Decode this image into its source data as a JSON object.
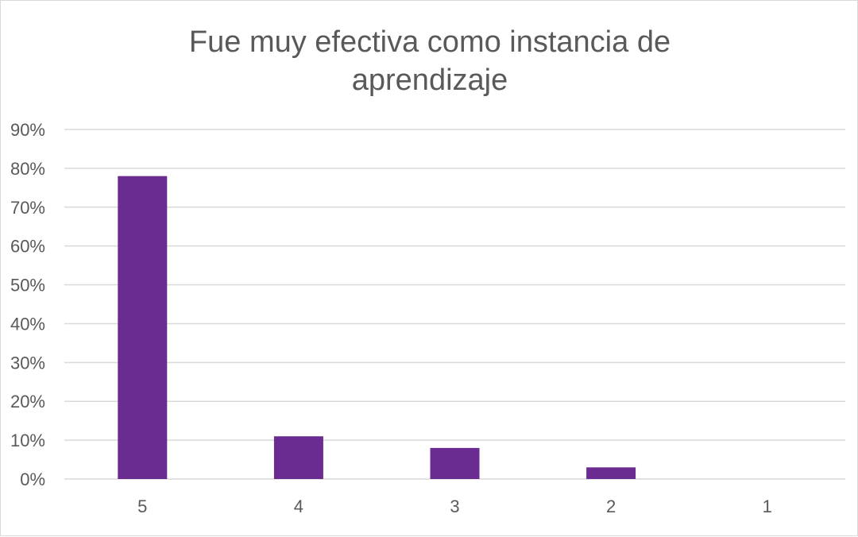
{
  "chart_data": {
    "type": "bar",
    "title": "Fue muy efectiva como instancia de aprendizaje",
    "categories": [
      "5",
      "4",
      "3",
      "2",
      "1"
    ],
    "values": [
      78,
      11,
      8,
      3,
      0
    ],
    "y_ticks": [
      "0%",
      "10%",
      "20%",
      "30%",
      "40%",
      "50%",
      "60%",
      "70%",
      "80%",
      "90%"
    ],
    "ylim": [
      0,
      90
    ],
    "y_unit": "%",
    "grid": true,
    "legend": "none",
    "bar_color": "#6A2C91",
    "gridline_color": "#D9D9D9",
    "text_color": "#595959"
  }
}
